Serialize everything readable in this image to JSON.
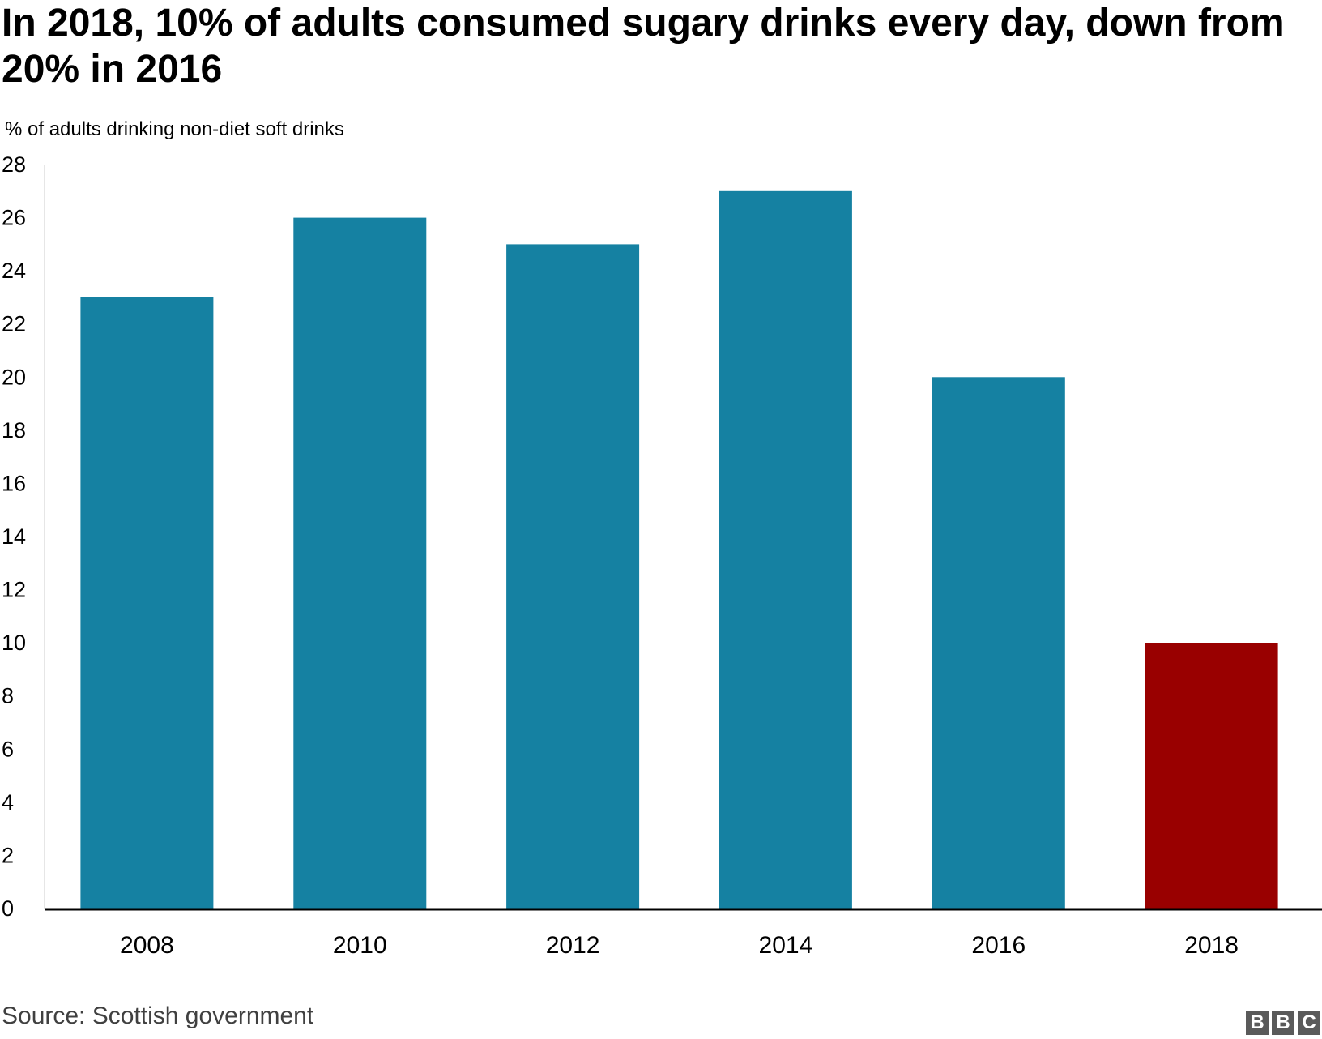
{
  "header": {
    "title": "In 2018, 10% of adults consumed sugary drinks every day, down from 20% in 2016",
    "subtitle": "% of adults drinking non-diet soft drinks"
  },
  "footer": {
    "source": "Source: Scottish government",
    "logo_text": "BBC",
    "logo_letters": [
      "B",
      "B",
      "C"
    ]
  },
  "colors": {
    "bar": "#1581a2",
    "highlight": "#990000",
    "axis": "#000000",
    "text": "#000000"
  },
  "chart_data": {
    "type": "bar",
    "title": "In 2018, 10% of adults consumed sugary drinks every day, down from 20% in 2016",
    "ylabel": "% of adults drinking non-diet soft drinks",
    "xlabel": "",
    "categories": [
      "2008",
      "2010",
      "2012",
      "2014",
      "2016",
      "2018"
    ],
    "values": [
      23,
      26,
      25,
      27,
      20,
      10
    ],
    "highlight_index": 5,
    "ylim": [
      0,
      28
    ],
    "yticks": [
      0,
      2,
      4,
      6,
      8,
      10,
      12,
      14,
      16,
      18,
      20,
      22,
      24,
      26,
      28
    ],
    "grid": false,
    "legend": "none"
  }
}
